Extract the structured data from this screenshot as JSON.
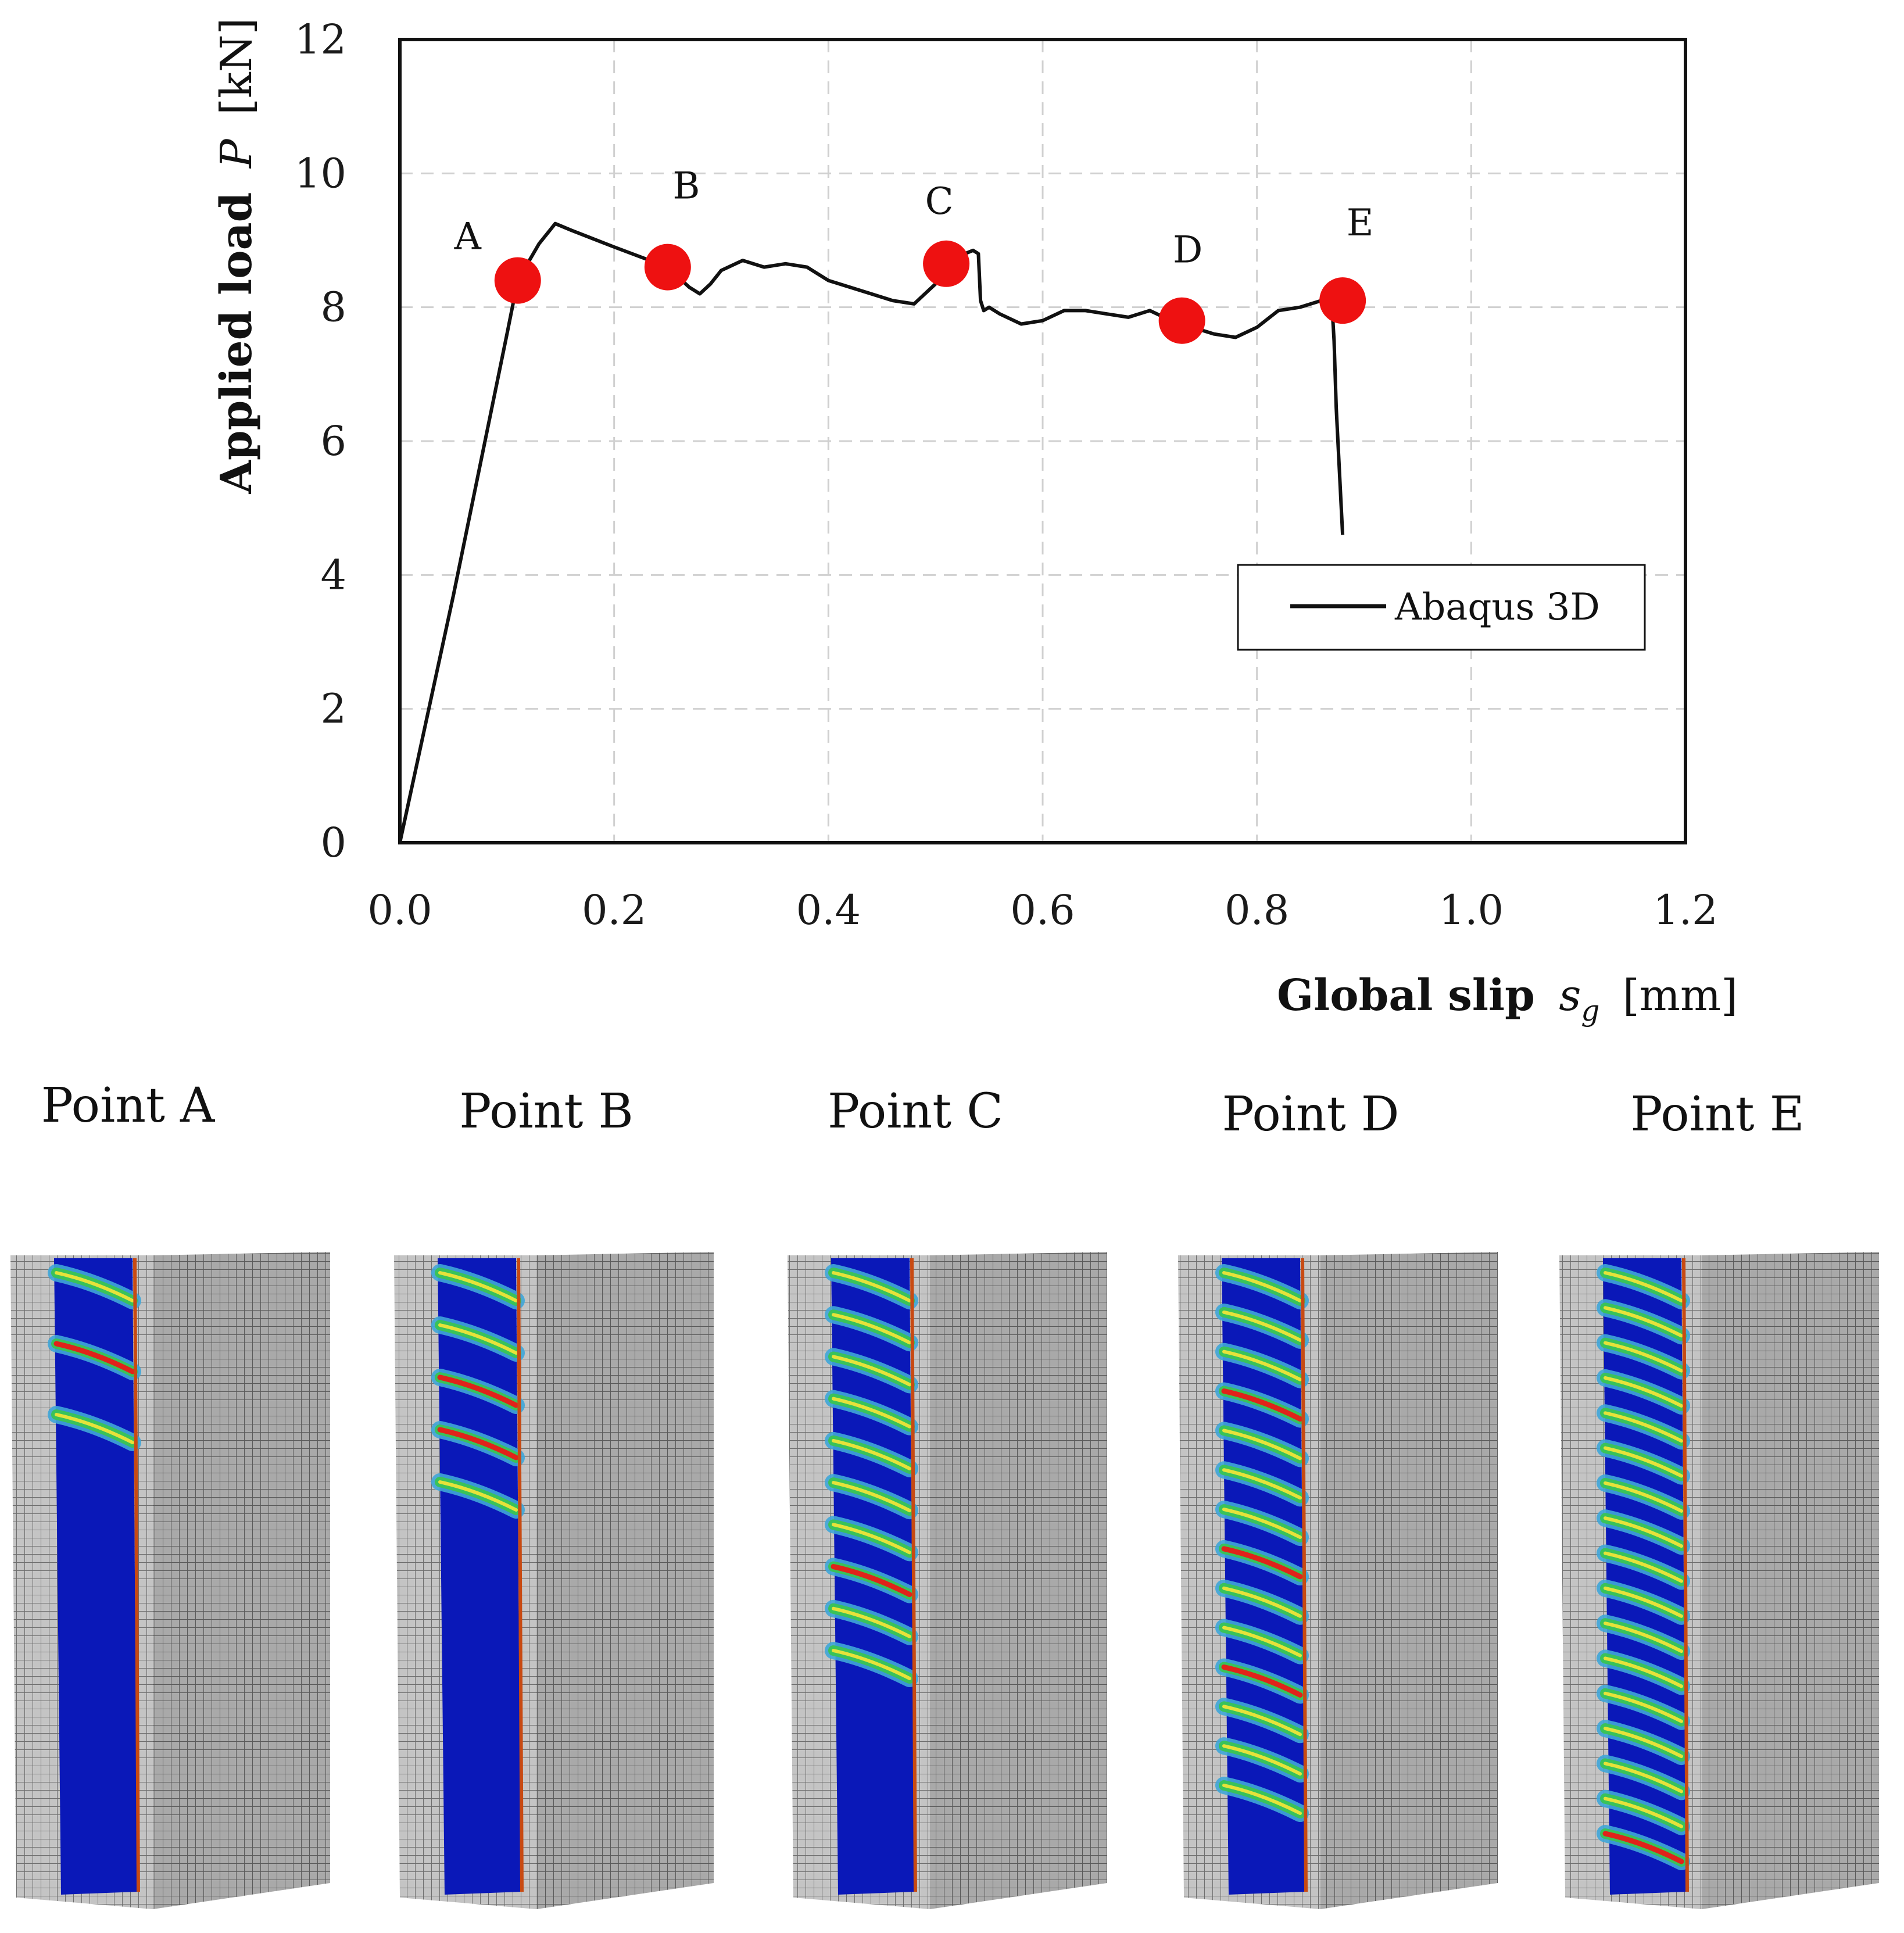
{
  "chart_data": {
    "type": "line",
    "title": "",
    "xlabel": "Global slip",
    "xlabel_symbol": "s",
    "xlabel_sub": "g",
    "xlabel_unit": "[mm]",
    "ylabel": "Applied load",
    "ylabel_symbol": "P",
    "ylabel_unit": "[kN]",
    "xlim": [
      0,
      1.2
    ],
    "ylim": [
      0,
      12
    ],
    "xticks": [
      "0.0",
      "0.2",
      "0.4",
      "0.6",
      "0.8",
      "1.0",
      "1.2"
    ],
    "yticks": [
      "0",
      "2",
      "4",
      "6",
      "8",
      "10",
      "12"
    ],
    "xtick_values": [
      0,
      0.2,
      0.4,
      0.6,
      0.8,
      1.0,
      1.2
    ],
    "ytick_values": [
      0,
      2,
      4,
      6,
      8,
      10,
      12
    ],
    "grid": true,
    "legend_position": "right",
    "series": [
      {
        "name": "Abaqus 3D",
        "color": "#111111",
        "x": [
          0,
          0.05,
          0.1,
          0.11,
          0.13,
          0.14,
          0.145,
          0.16,
          0.2,
          0.25,
          0.27,
          0.28,
          0.29,
          0.3,
          0.32,
          0.34,
          0.36,
          0.38,
          0.4,
          0.42,
          0.44,
          0.46,
          0.48,
          0.5,
          0.51,
          0.52,
          0.535,
          0.54,
          0.542,
          0.545,
          0.55,
          0.56,
          0.58,
          0.6,
          0.62,
          0.64,
          0.66,
          0.68,
          0.7,
          0.72,
          0.74,
          0.76,
          0.78,
          0.8,
          0.82,
          0.84,
          0.86,
          0.87,
          0.872,
          0.874,
          0.88
        ],
        "y": [
          0,
          3.7,
          7.6,
          8.4,
          8.95,
          9.15,
          9.25,
          9.15,
          8.9,
          8.6,
          8.3,
          8.2,
          8.35,
          8.55,
          8.7,
          8.6,
          8.65,
          8.6,
          8.4,
          8.3,
          8.2,
          8.1,
          8.05,
          8.35,
          8.65,
          8.75,
          8.85,
          8.8,
          8.1,
          7.95,
          8.0,
          7.9,
          7.75,
          7.8,
          7.95,
          7.95,
          7.9,
          7.85,
          7.95,
          7.8,
          7.7,
          7.6,
          7.55,
          7.7,
          7.95,
          8.0,
          8.1,
          8.05,
          7.5,
          6.5,
          4.6
        ]
      }
    ],
    "markers": [
      {
        "label": "A",
        "x": 0.11,
        "y": 8.4,
        "color": "#ee1111"
      },
      {
        "label": "B",
        "x": 0.25,
        "y": 8.6,
        "color": "#ee1111"
      },
      {
        "label": "C",
        "x": 0.51,
        "y": 8.65,
        "color": "#ee1111"
      },
      {
        "label": "D",
        "x": 0.73,
        "y": 7.8,
        "color": "#ee1111"
      },
      {
        "label": "E",
        "x": 0.88,
        "y": 8.1,
        "color": "#ee1111"
      }
    ]
  },
  "panels": [
    {
      "title": "Point A",
      "bands": 3,
      "hot_rows": [
        1
      ]
    },
    {
      "title": "Point B",
      "bands": 5,
      "hot_rows": [
        2,
        3
      ]
    },
    {
      "title": "Point C",
      "bands": 10,
      "hot_rows": [
        7
      ]
    },
    {
      "title": "Point D",
      "bands": 14,
      "hot_rows": [
        3,
        7,
        10
      ]
    },
    {
      "title": "Point E",
      "bands": 17,
      "hot_rows": [
        16
      ]
    }
  ],
  "colors": {
    "marker": "#ee1111",
    "mesh_grey": "#b8b8b8",
    "field_blue": "#0a18b8",
    "field_green": "#39c25a",
    "field_yellow": "#e6e23a",
    "field_red": "#e0231a",
    "field_cyan": "#3fa6d8"
  }
}
